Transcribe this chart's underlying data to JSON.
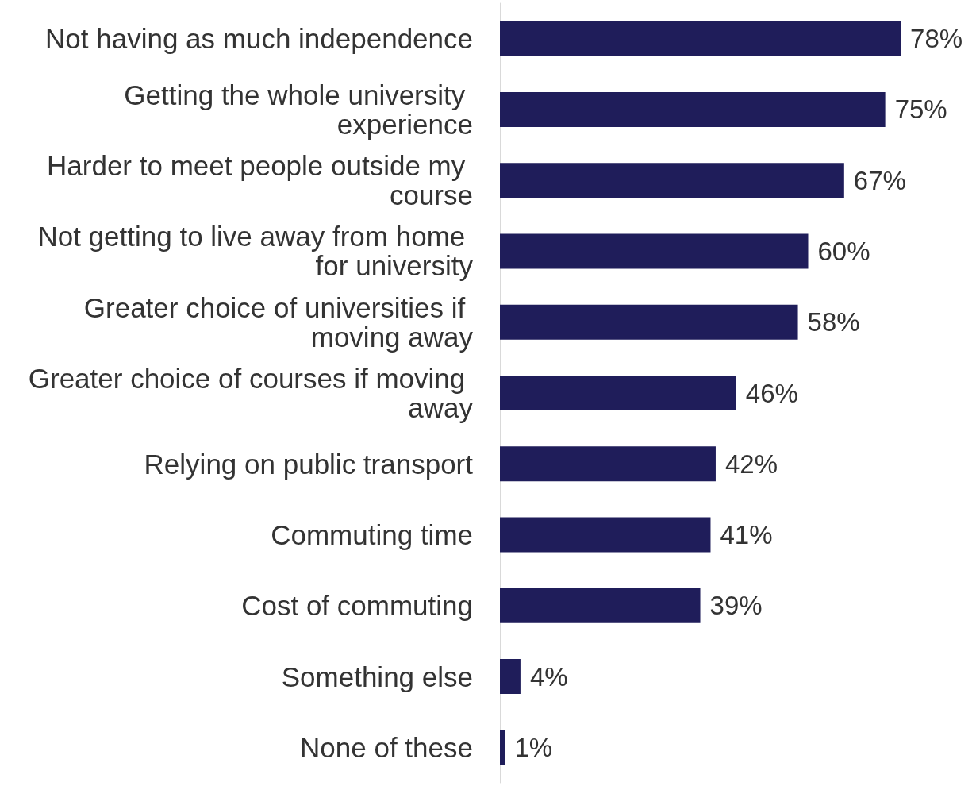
{
  "chart_data": {
    "type": "bar",
    "orientation": "horizontal",
    "categories": [
      "Not having as much independence",
      "Getting the whole university experience",
      "Harder to meet people outside my course",
      "Not getting to live away from home for university",
      "Greater choice of universities if moving away",
      "Greater choice of courses if moving away",
      "Relying on public transport",
      "Commuting time",
      "Cost of commuting",
      "Something else",
      "None of these"
    ],
    "values": [
      78,
      75,
      67,
      60,
      58,
      46,
      42,
      41,
      39,
      4,
      1
    ],
    "value_labels": [
      "78%",
      "75%",
      "67%",
      "60%",
      "58%",
      "46%",
      "42%",
      "41%",
      "39%",
      "4%",
      "1%"
    ],
    "color": "#1f1d5a",
    "grid": false
  }
}
